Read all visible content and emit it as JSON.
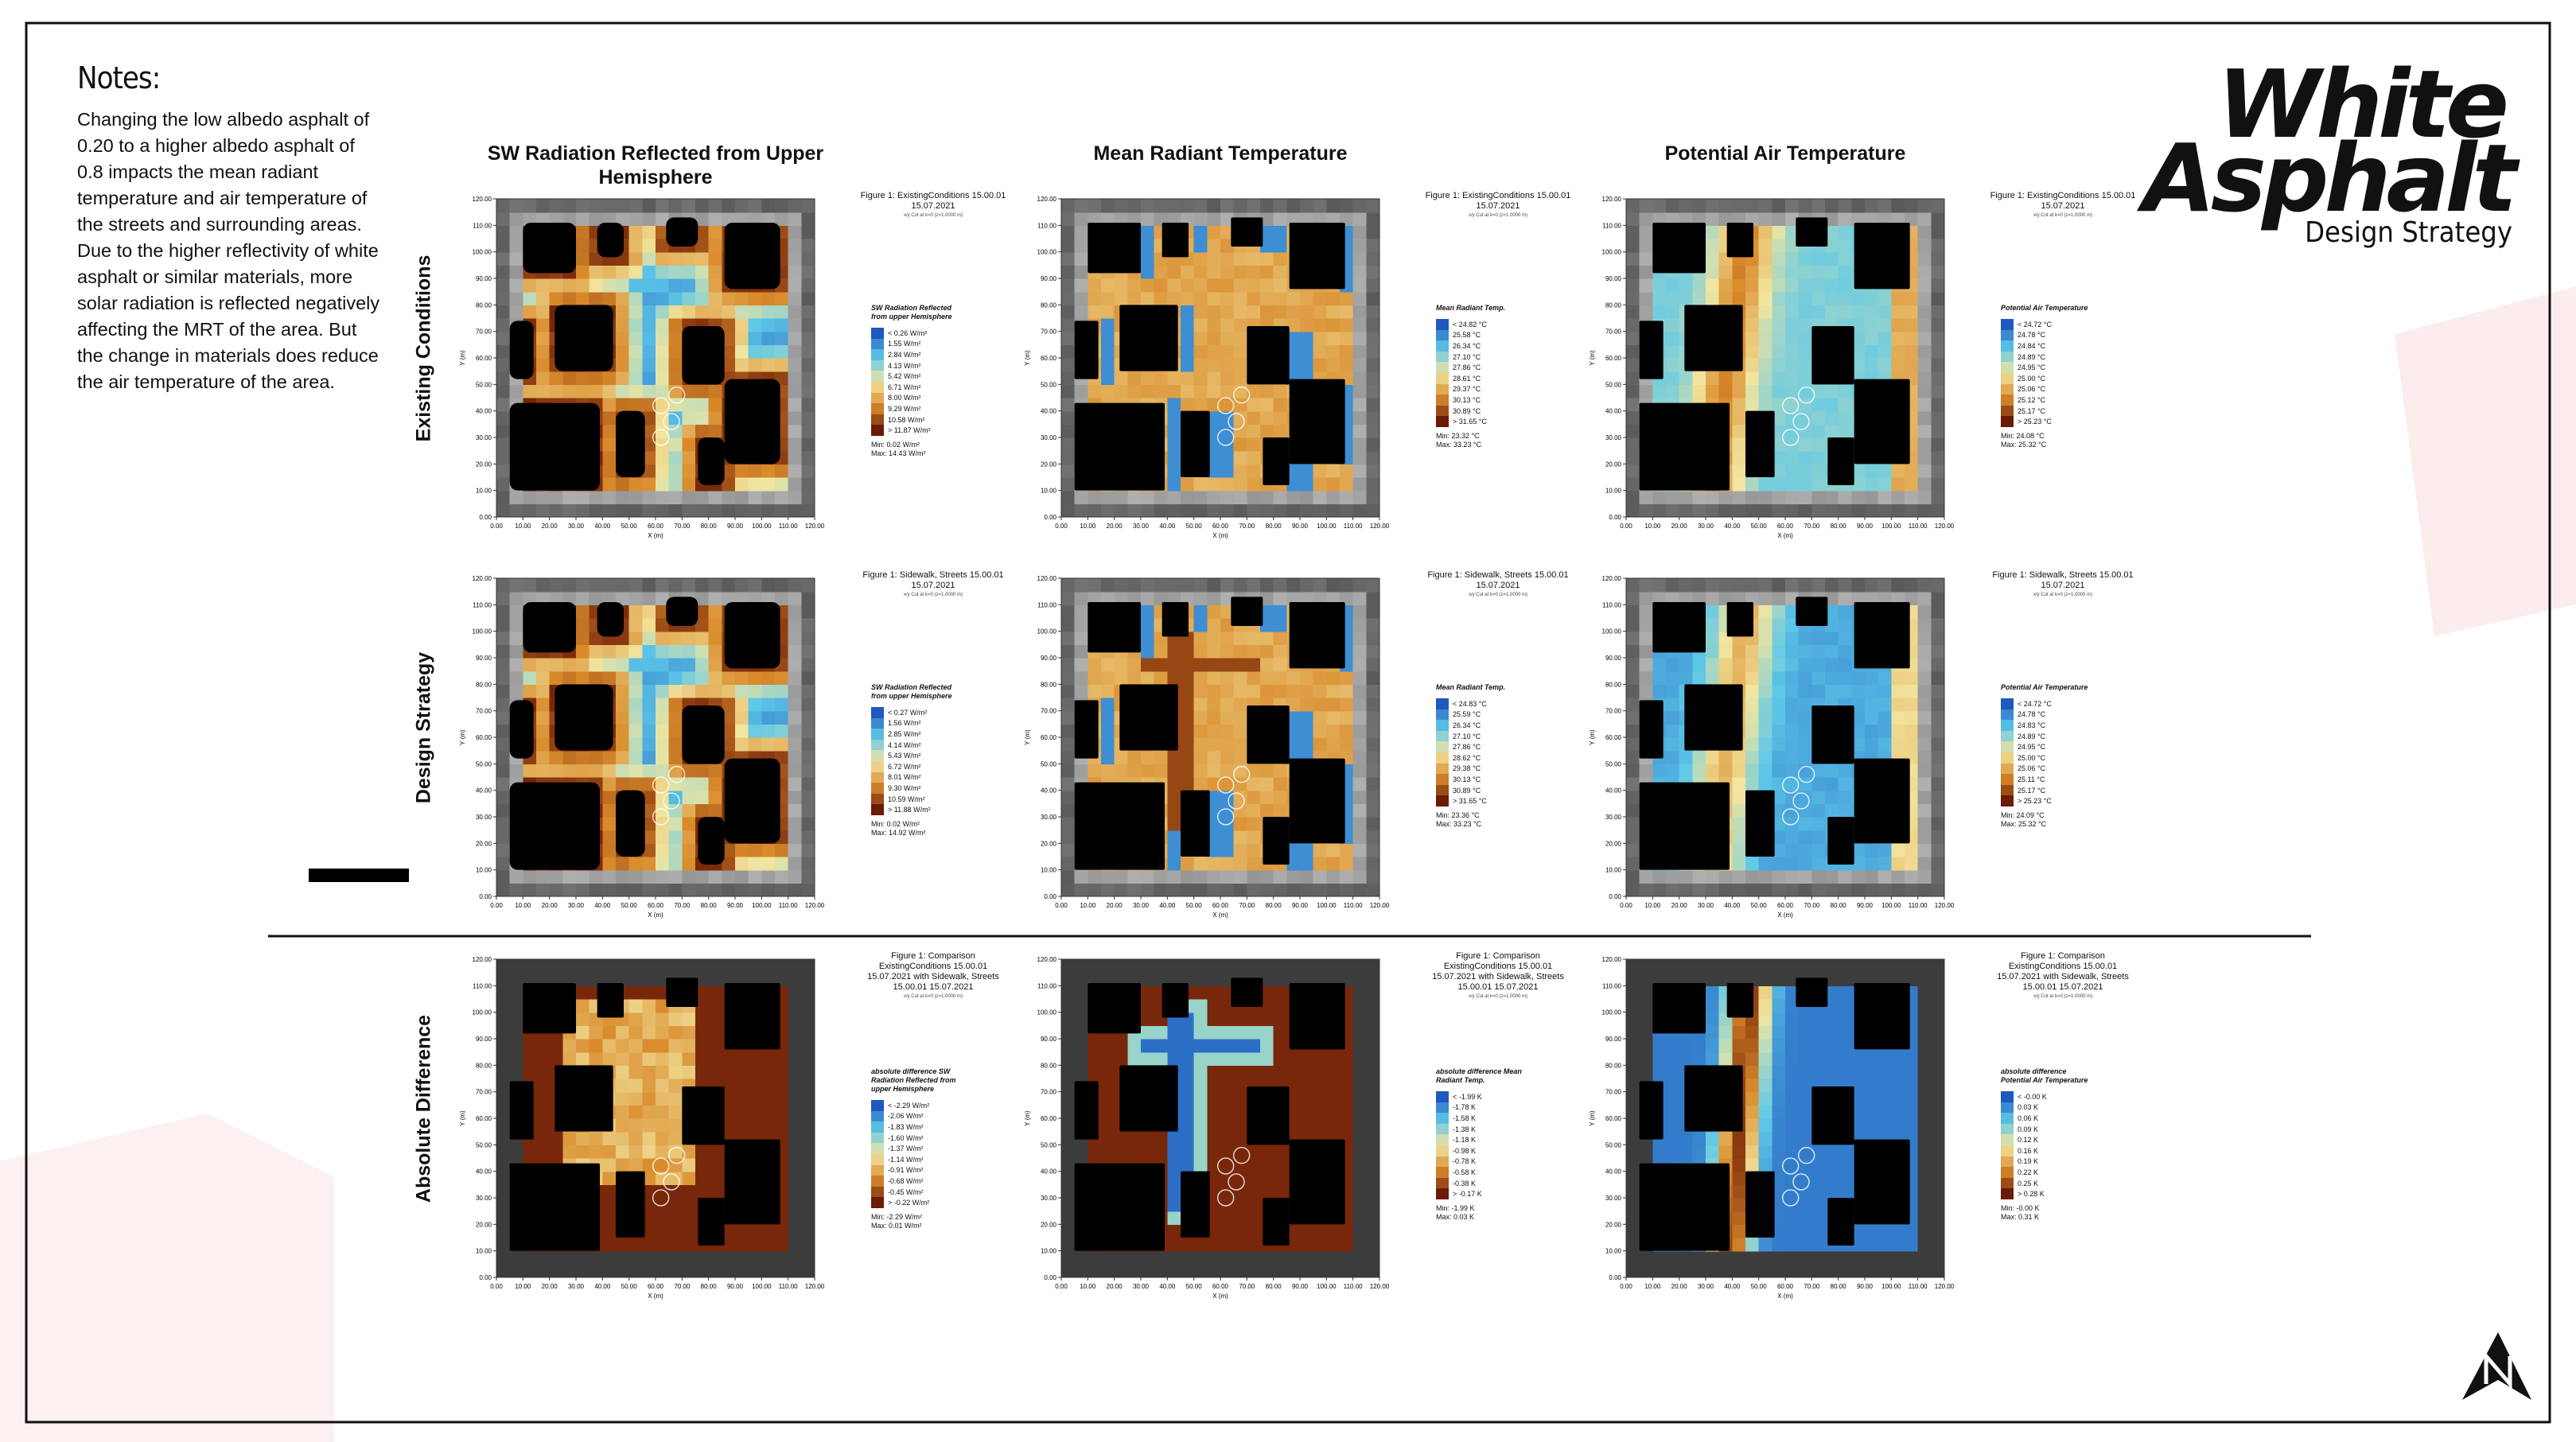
{
  "notes": {
    "title": "Notes:",
    "text": "Changing the low albedo asphalt of 0.20 to a higher albedo asphalt of 0.8 impacts the mean radiant temperature and air temperature of the streets and surrounding areas. Due to the higher reflectivity of white asphalt or similar materials, more solar radiation is reflected negatively affecting the MRT of the area. But the change in materials does reduce the air temperature of the area."
  },
  "brand": {
    "line1": "White",
    "line2": "Asphalt",
    "subtitle": "Design Strategy"
  },
  "columns": [
    "SW Radiation Reflected from Upper Hemisphere",
    "Mean Radiant Temperature",
    "Potential Air Temperature"
  ],
  "rows": [
    "Existing Conditions",
    "Design Strategy",
    "Absolute Difference"
  ],
  "axes": {
    "x_label": "X (m)",
    "y_label": "Y (m)",
    "ticks": [
      "0.00",
      "10.00",
      "20.00",
      "30.00",
      "40.00",
      "50.00",
      "60.00",
      "70.00",
      "80.00",
      "90.00",
      "100.00",
      "110.00",
      "120.00"
    ]
  },
  "panels": [
    {
      "caption": "Figure 1: ExistingConditions 15.00.01 15.07.2021",
      "cut_note": "x/y Cut at k=0 (z=1.0000 m)",
      "legend_title": "SW Radiation Reflected from upper Hemisphere",
      "legend": [
        "< 0.26 W/m²",
        "1.55 W/m²",
        "2.84 W/m²",
        "4.13 W/m²",
        "5.42 W/m²",
        "6.71 W/m²",
        "8.00 W/m²",
        "9.29 W/m²",
        "10.58 W/m²",
        "> 11.87 W/m²"
      ],
      "min": "Min: 0.02 W/m²",
      "max": "Max: 14.43 W/m²"
    },
    {
      "caption": "Figure 1: ExistingConditions 15.00.01 15.07.2021",
      "cut_note": "x/y Cut at k=0 (z=1.0000 m)",
      "legend_title": "Mean Radiant Temp.",
      "legend": [
        "< 24.82 °C",
        "25.58 °C",
        "26.34 °C",
        "27.10 °C",
        "27.86 °C",
        "28.61 °C",
        "29.37 °C",
        "30.13 °C",
        "30.89 °C",
        "> 31.65 °C"
      ],
      "min": "Min: 23.32 °C",
      "max": "Max: 33.23 °C"
    },
    {
      "caption": "Figure 1: ExistingConditions 15.00.01 15.07.2021",
      "cut_note": "x/y Cut at k=0 (z=1.0000 m)",
      "legend_title": "Potential Air Temperature",
      "legend": [
        "< 24.72 °C",
        "24.78 °C",
        "24.84 °C",
        "24.89 °C",
        "24.95 °C",
        "25.00 °C",
        "25.06 °C",
        "25.12 °C",
        "25.17 °C",
        "> 25.23 °C"
      ],
      "min": "Min: 24.08 °C",
      "max": "Max: 25.32 °C"
    },
    {
      "caption": "Figure 1: Sidewalk, Streets 15.00.01 15.07.2021",
      "cut_note": "x/y Cut at k=0 (z=1.0000 m)",
      "legend_title": "SW Radiation Reflected from upper Hemisphere",
      "legend": [
        "< 0.27 W/m²",
        "1.56 W/m²",
        "2.85 W/m²",
        "4.14 W/m²",
        "5.43 W/m²",
        "6.72 W/m²",
        "8.01 W/m²",
        "9.30 W/m²",
        "10.59 W/m²",
        "> 11.88 W/m²"
      ],
      "min": "Min: 0.02 W/m²",
      "max": "Max: 14.92 W/m²"
    },
    {
      "caption": "Figure 1: Sidewalk, Streets 15.00.01 15.07.2021",
      "cut_note": "x/y Cut at k=0 (z=1.0000 m)",
      "legend_title": "Mean Radiant Temp.",
      "legend": [
        "< 24.83 °C",
        "25.59 °C",
        "26.34 °C",
        "27.10 °C",
        "27.86 °C",
        "28.62 °C",
        "29.38 °C",
        "30.13 °C",
        "30.89 °C",
        "> 31.65 °C"
      ],
      "min": "Min: 23.36 °C",
      "max": "Max: 33.23 °C"
    },
    {
      "caption": "Figure 1: Sidewalk, Streets 15.00.01 15.07.2021",
      "cut_note": "x/y Cut at k=0 (z=1.0000 m)",
      "legend_title": "Potential Air Temperature",
      "legend": [
        "< 24.72 °C",
        "24.78 °C",
        "24.83 °C",
        "24.89 °C",
        "24.95 °C",
        "25.00 °C",
        "25.06 °C",
        "25.11 °C",
        "25.17 °C",
        "> 25.23 °C"
      ],
      "min": "Min: 24.09 °C",
      "max": "Max: 25.32 °C"
    },
    {
      "caption": "Figure 1: Comparison ExistingConditions 15.00.01 15.07.2021 with Sidewalk, Streets 15.00.01 15.07.2021",
      "cut_note": "x/y Cut at k=0 (z=1.0000 m)",
      "legend_title": "absolute difference SW Radiation Reflected from upper Hemisphere",
      "legend": [
        "< -2.29 W/m²",
        "-2.06 W/m²",
        "-1.83 W/m²",
        "-1.60 W/m²",
        "-1.37 W/m²",
        "-1.14 W/m²",
        "-0.91 W/m²",
        "-0.68 W/m²",
        "-0.45 W/m²",
        "> -0.22 W/m²"
      ],
      "min": "Min: -2.29 W/m²",
      "max": "Max: 0.01 W/m²"
    },
    {
      "caption": "Figure 1: Comparison ExistingConditions 15.00.01 15.07.2021 with Sidewalk, Streets 15.00.01 15.07.2021",
      "cut_note": "x/y Cut at k=0 (z=1.0000 m)",
      "legend_title": "absolute difference Mean Radiant Temp.",
      "legend": [
        "< -1.99 K",
        "-1.78 K",
        "-1.58 K",
        "-1.38 K",
        "-1.18 K",
        "-0.98 K",
        "-0.78 K",
        "-0.58 K",
        "-0.38 K",
        "> -0.17 K"
      ],
      "min": "Min: -1.99 K",
      "max": "Max: 0.03 K"
    },
    {
      "caption": "Figure 1: Comparison ExistingConditions 15.00.01 15.07.2021 with Sidewalk, Streets 15.00.01 15.07.2021",
      "cut_note": "x/y Cut at k=0 (z=1.0000 m)",
      "legend_title": "absolute difference Potential Air Temperature",
      "legend": [
        "< -0.00 K",
        "0.03 K",
        "0.06 K",
        "0.09 K",
        "0.12 K",
        "0.16 K",
        "0.19 K",
        "0.22 K",
        "0.25 K",
        "> 0.28 K"
      ],
      "min": "Min: -0.00 K",
      "max": "Max: 0.31 K"
    }
  ]
}
